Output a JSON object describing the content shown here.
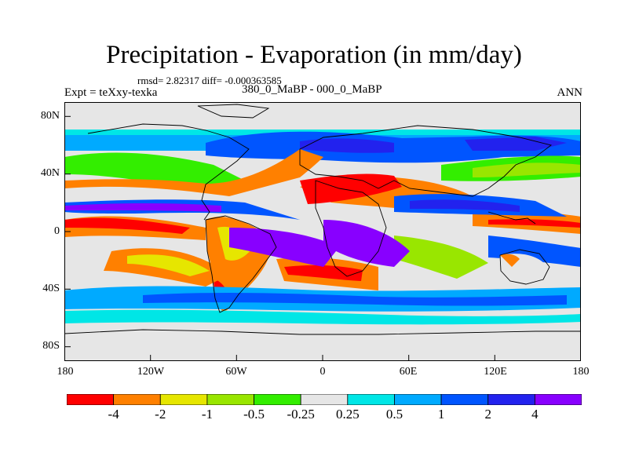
{
  "figure": {
    "title": "Precipitation - Evaporation (in mm/day)",
    "stats": "rmsd= 2.82317 diff= -0.000363585",
    "expt": "Expt = teXxy-texka",
    "subtitle": "380_0_MaBP - 000_0_MaBP",
    "season": "ANN"
  },
  "axes": {
    "lat_labels": [
      "80N",
      "40N",
      "0",
      "40S",
      "80S"
    ],
    "lat_values": [
      80,
      40,
      0,
      -40,
      -80
    ],
    "lon_labels": [
      "180",
      "120W",
      "60W",
      "0",
      "60E",
      "120E",
      "180"
    ],
    "lon_values": [
      -180,
      -120,
      -60,
      0,
      60,
      120,
      180
    ],
    "lat_range": [
      -90,
      90
    ],
    "lon_range": [
      -180,
      180
    ]
  },
  "colorbar": {
    "labels": [
      "-4",
      "-2",
      "-1",
      "-0.5",
      "-0.25",
      "0.25",
      "0.5",
      "1",
      "2",
      "4"
    ],
    "colors": [
      "#ff0000",
      "#ff8000",
      "#e6e600",
      "#99e600",
      "#33ee00",
      "#e6e6e6",
      "#00e6e6",
      "#00aaff",
      "#0055ff",
      "#2222ee",
      "#8800ff"
    ]
  }
}
